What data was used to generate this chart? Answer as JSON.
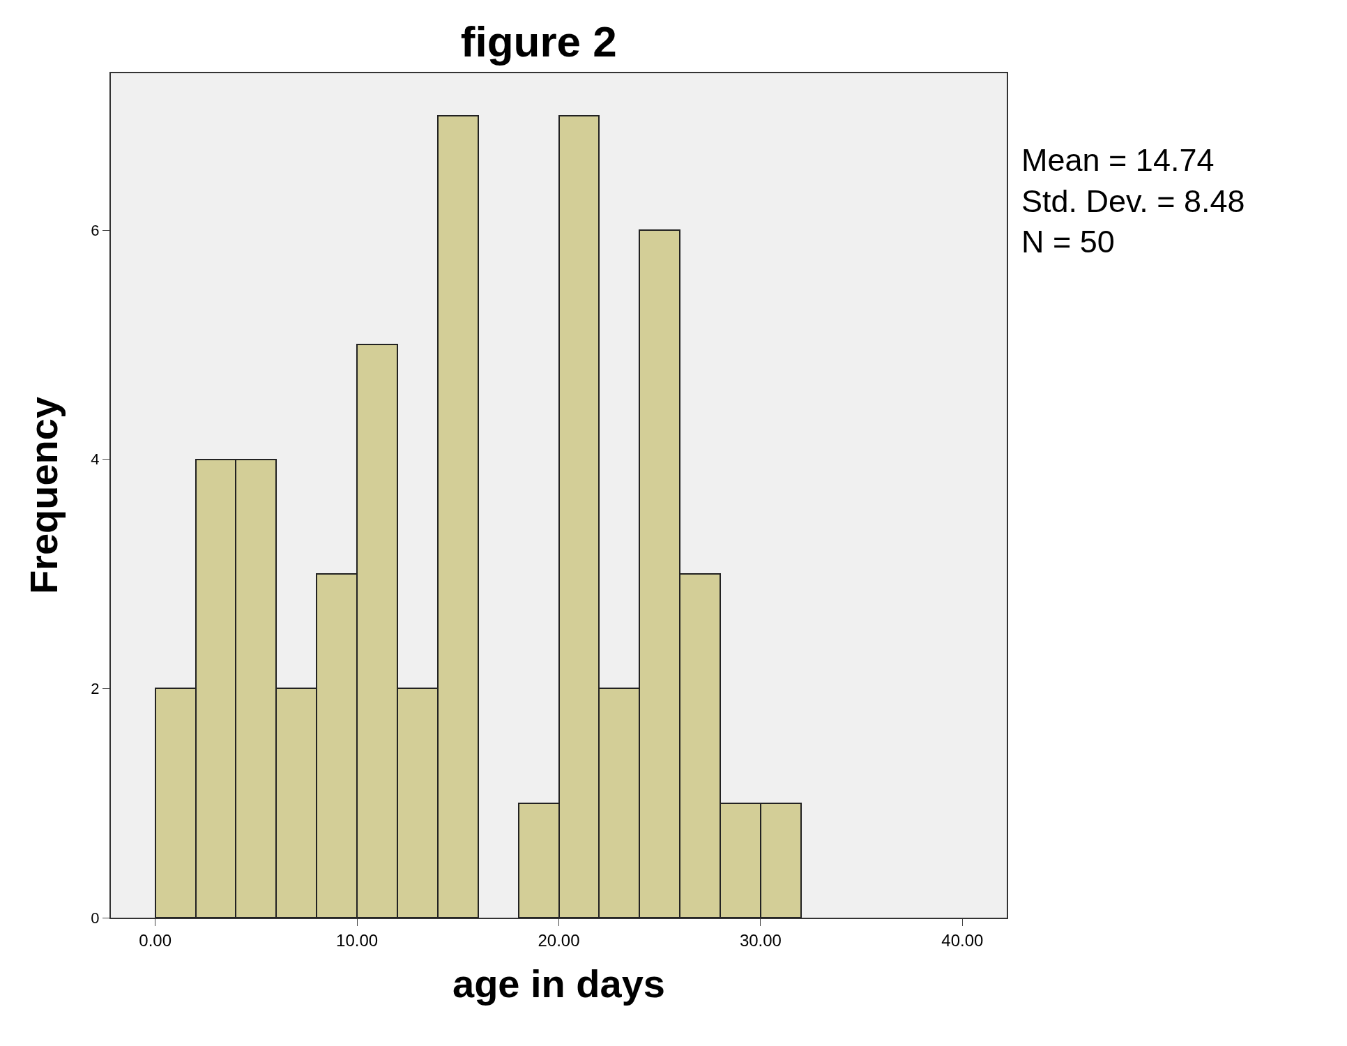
{
  "chart_data": {
    "type": "histogram",
    "title": "figure 2",
    "xlabel": "age in days",
    "ylabel": "Frequency",
    "bins": [
      0,
      2,
      4,
      6,
      8,
      10,
      12,
      14,
      16,
      18,
      20,
      22,
      24,
      26,
      28,
      30,
      32
    ],
    "values": [
      2,
      4,
      4,
      2,
      3,
      5,
      2,
      7,
      0,
      1,
      7,
      2,
      6,
      3,
      1,
      1
    ],
    "color": "#d3ce97",
    "xlim": [
      -2.2,
      42.2
    ],
    "xticks": [
      {
        "value": 0,
        "label": "0.00"
      },
      {
        "value": 10,
        "label": "10.00"
      },
      {
        "value": 20,
        "label": "20.00"
      },
      {
        "value": 30,
        "label": "30.00"
      },
      {
        "value": 40,
        "label": "40.00"
      }
    ],
    "ylim": [
      0,
      7.37
    ],
    "yticks": [
      0,
      2,
      4,
      6
    ],
    "grid": false,
    "legend": false,
    "annotations": [
      "Mean = 14.74",
      "Std. Dev. = 8.48",
      "N = 50"
    ]
  }
}
